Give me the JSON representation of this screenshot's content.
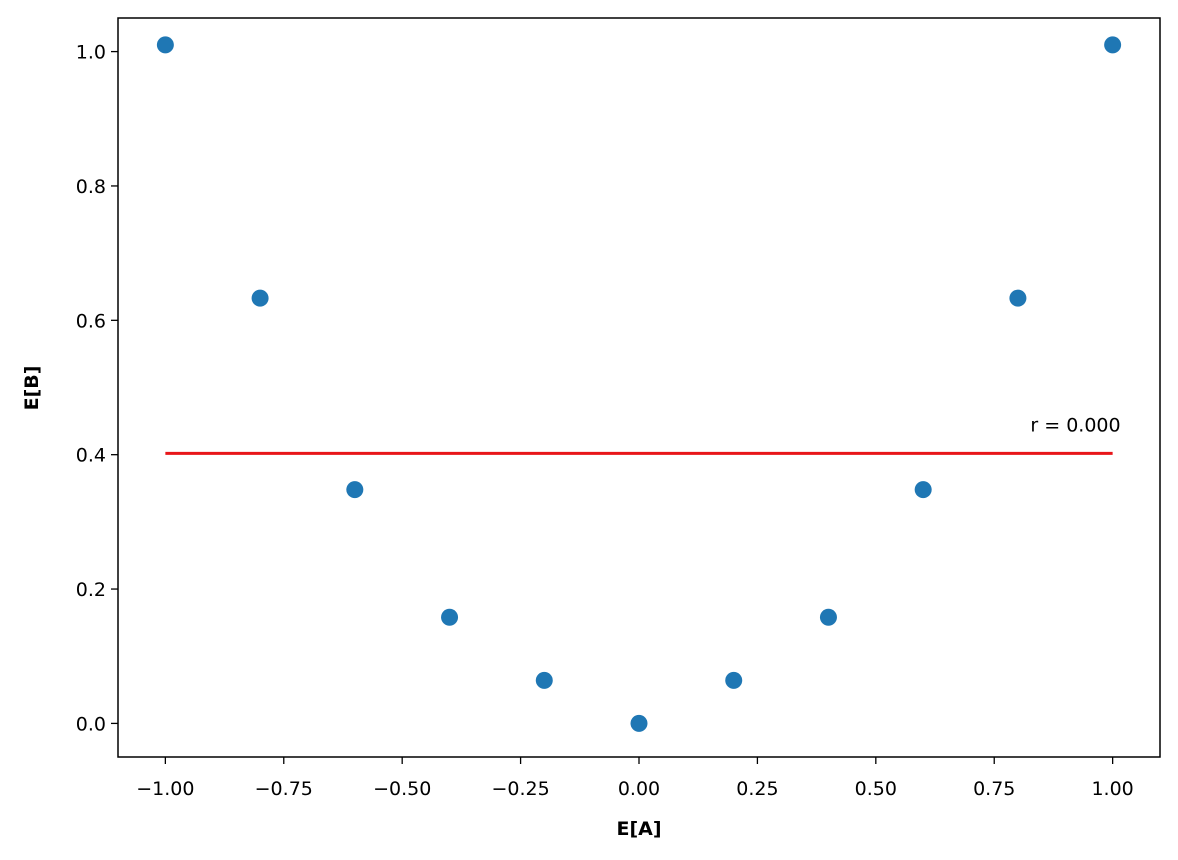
{
  "chart_data": {
    "type": "scatter",
    "x_label": "E[A]",
    "y_label": "E[B]",
    "x": [
      -1.0,
      -0.8,
      -0.6,
      -0.4,
      -0.2,
      0.0,
      0.2,
      0.4,
      0.6,
      0.8,
      1.0
    ],
    "series": [
      {
        "name": null,
        "color": "#1f77b4",
        "values": [
          1.01,
          0.633,
          0.348,
          0.158,
          0.064,
          0.0,
          0.064,
          0.158,
          0.348,
          0.633,
          1.01
        ]
      }
    ],
    "fit_line": {
      "x": [
        -1.0,
        1.0
      ],
      "y": [
        0.402,
        0.402
      ],
      "color": "#e8161a"
    },
    "annotation": "r = 0.000",
    "xlim": [
      -1.1,
      1.1
    ],
    "ylim": [
      -0.05,
      1.05
    ],
    "xticks": [
      {
        "value": -1.0,
        "label": "−1.00"
      },
      {
        "value": -0.75,
        "label": "−0.75"
      },
      {
        "value": -0.5,
        "label": "−0.50"
      },
      {
        "value": -0.25,
        "label": "−0.25"
      },
      {
        "value": 0.0,
        "label": "0.00"
      },
      {
        "value": 0.25,
        "label": "0.25"
      },
      {
        "value": 0.5,
        "label": "0.50"
      },
      {
        "value": 0.75,
        "label": "0.75"
      },
      {
        "value": 1.0,
        "label": "1.00"
      }
    ],
    "yticks": [
      {
        "value": 0.0,
        "label": "0.0"
      },
      0.2,
      0.4,
      0.6,
      0.8,
      {
        "value": 1.0,
        "label": "1.0"
      }
    ],
    "grid": false
  }
}
